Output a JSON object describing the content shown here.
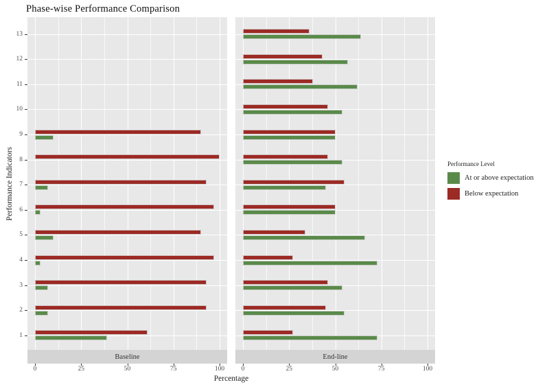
{
  "chart_data": {
    "type": "bar",
    "orientation": "horizontal",
    "grouping": "dodged",
    "faceted": true,
    "grid": true,
    "title": "Phase-wise Performance Comparison",
    "xlabel": "Percentage",
    "ylabel": "Performance Indicators",
    "xlim": [
      0,
      100
    ],
    "xticks": [
      0,
      25,
      50,
      75,
      100
    ],
    "xminor": [
      12.5,
      37.5,
      62.5,
      87.5
    ],
    "categories": [
      "1",
      "2",
      "3",
      "4",
      "5",
      "6",
      "7",
      "8",
      "9",
      "10",
      "11",
      "12",
      "13"
    ],
    "legend": {
      "title": "Performance Level",
      "position": "right",
      "entries": [
        {
          "label": "At or above expectation",
          "color": "#5A8A4A"
        },
        {
          "label": "Below expectation",
          "color": "#9C2A25"
        }
      ]
    },
    "facets": [
      {
        "label": "Baseline",
        "series": [
          {
            "name": "Below expectation",
            "color": "#9C2A25",
            "values": [
              61,
              93,
              93,
              97,
              90,
              97,
              93,
              100,
              90,
              null,
              null,
              null,
              null
            ]
          },
          {
            "name": "At or above expectation",
            "color": "#5A8A4A",
            "values": [
              39,
              7,
              7,
              3,
              10,
              3,
              7,
              0,
              10,
              null,
              null,
              null,
              null
            ]
          }
        ]
      },
      {
        "label": "End-line",
        "series": [
          {
            "name": "Below expectation",
            "color": "#9C2A25",
            "values": [
              27,
              45,
              46,
              27,
              34,
              50,
              55,
              46,
              50,
              46,
              38,
              43,
              36
            ]
          },
          {
            "name": "At or above expectation",
            "color": "#5A8A4A",
            "values": [
              73,
              55,
              54,
              73,
              66,
              50,
              45,
              54,
              50,
              54,
              62,
              57,
              64
            ]
          }
        ]
      }
    ],
    "panel_bg": "#E8E8E8",
    "strip_bg": "#D4D4D4",
    "grid_color": "#FFFFFF"
  }
}
